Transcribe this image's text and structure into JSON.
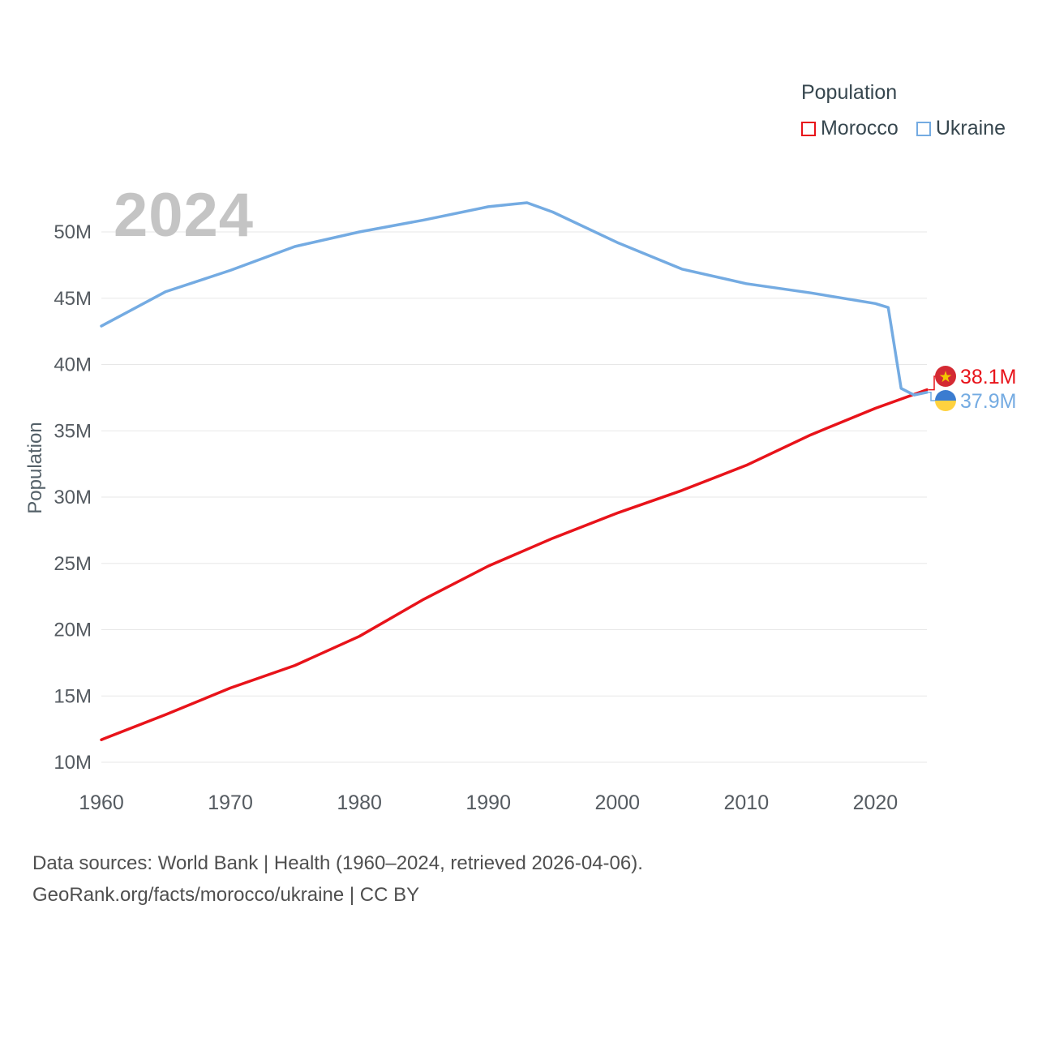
{
  "page": {
    "background": "#ffffff",
    "watermark": "2024",
    "footer_line1": "Data sources: World Bank | Health (1960–2024, retrieved 2026-04-06).",
    "footer_line2": "GeoRank.org/facts/morocco/ukraine | CC BY"
  },
  "legend": {
    "title": "Population",
    "items": [
      {
        "label": "Morocco",
        "color": "#e8131a"
      },
      {
        "label": "Ukraine",
        "color": "#74abe2"
      }
    ]
  },
  "chart_data": {
    "type": "line",
    "title": "Population",
    "ylabel": "Population",
    "xlabel": "",
    "xlim": [
      1960,
      2024
    ],
    "ylim": [
      10,
      53
    ],
    "grid": true,
    "legend_position": "top-right",
    "x_ticks": [
      1960,
      1970,
      1980,
      1990,
      2000,
      2010,
      2020
    ],
    "y_tick_values": [
      10,
      15,
      20,
      25,
      30,
      35,
      40,
      45,
      50
    ],
    "y_ticks": [
      "10M",
      "15M",
      "20M",
      "25M",
      "30M",
      "35M",
      "40M",
      "45M",
      "50M"
    ],
    "series": [
      {
        "name": "Morocco",
        "color": "#e8131a",
        "end_label": "38.1M",
        "flag_icon": "morocco-flag-icon",
        "flag_colors": {
          "bg": "#d42a33",
          "star": "#f2c500"
        },
        "x": [
          1960,
          1965,
          1970,
          1975,
          1980,
          1985,
          1990,
          1995,
          2000,
          2005,
          2010,
          2015,
          2020,
          2024
        ],
        "values": [
          11.7,
          13.6,
          15.6,
          17.3,
          19.5,
          22.3,
          24.8,
          26.9,
          28.8,
          30.5,
          32.4,
          34.7,
          36.7,
          38.1
        ]
      },
      {
        "name": "Ukraine",
        "color": "#74abe2",
        "end_label": "37.9M",
        "flag_icon": "ukraine-flag-icon",
        "flag_colors": {
          "top": "#3b7cd0",
          "bottom": "#ffd23f"
        },
        "x": [
          1960,
          1965,
          1970,
          1975,
          1980,
          1985,
          1990,
          1993,
          1995,
          2000,
          2005,
          2010,
          2015,
          2020,
          2021,
          2022,
          2023,
          2024
        ],
        "values": [
          42.9,
          45.5,
          47.1,
          48.9,
          50.0,
          50.9,
          51.9,
          52.2,
          51.5,
          49.2,
          47.2,
          46.1,
          45.4,
          44.6,
          44.3,
          38.2,
          37.7,
          37.9
        ]
      }
    ]
  }
}
